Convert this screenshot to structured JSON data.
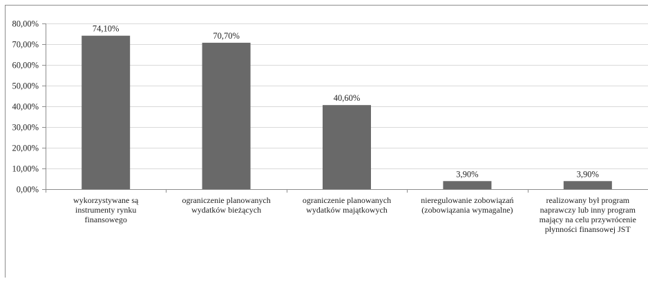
{
  "chart_data": {
    "type": "bar",
    "title": "",
    "xlabel": "",
    "ylabel": "",
    "ylim": [
      0,
      80
    ],
    "y_ticks": [
      "0,00%",
      "10,00%",
      "20,00%",
      "30,00%",
      "40,00%",
      "50,00%",
      "60,00%",
      "70,00%",
      "80,00%"
    ],
    "grid": true,
    "legend": "none",
    "categories": [
      [
        "wykorzystywane są",
        "instrumenty rynku",
        "finansowego"
      ],
      [
        "ograniczenie planowanych",
        "wydatków bieżących"
      ],
      [
        "ograniczenie planowanych",
        "wydatków majątkowych"
      ],
      [
        "nieregulowanie zobowiązań",
        "(zobowiązania wymagalne)"
      ],
      [
        "realizowany był program",
        "naprawczy lub inny program",
        "mający na celu przywrócenie",
        "płynności finansowej JST"
      ]
    ],
    "values": [
      74.1,
      70.7,
      40.6,
      3.9,
      3.9
    ],
    "data_labels": [
      "74,10%",
      "70,70%",
      "40,60%",
      "3,90%",
      "3,90%"
    ],
    "colors": {
      "bar": "#696969",
      "grid": "#d9d9d9",
      "axis": "#8c8c8c",
      "frame": "#8c8c8c"
    }
  }
}
